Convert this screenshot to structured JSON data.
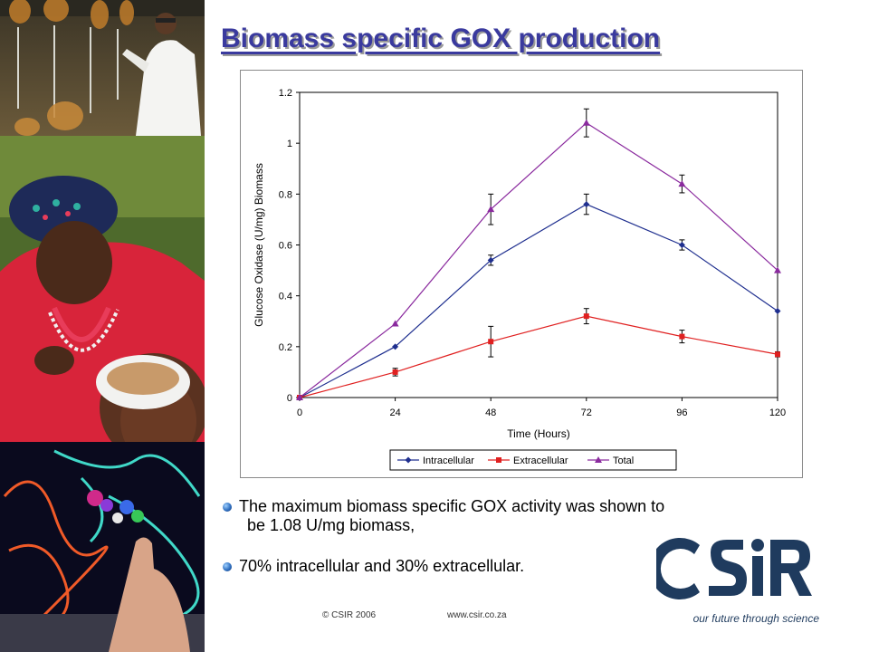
{
  "slide": {
    "title": "Biomass specific GOX production",
    "bullets": [
      {
        "line1": "The maximum biomass specific GOX activity was shown to",
        "line2": "be 1.08 U/mg biomass,"
      },
      {
        "line1": "70% intracellular and 30% extracellular."
      }
    ],
    "footer": {
      "copyright": "© CSIR 2006",
      "url": "www.csir.co.za"
    },
    "logo": {
      "wordmark": "CSIR",
      "tagline": "our future through science",
      "color": "#1f3b5e"
    }
  },
  "photos": [
    {
      "name": "laboratory-photo"
    },
    {
      "name": "mother-child-feeding-photo"
    },
    {
      "name": "molecular-model-photo"
    }
  ],
  "chart_data": {
    "type": "line",
    "title": "",
    "xlabel": "Time (Hours)",
    "ylabel": "Glucose Oxidase (U/mg) Biomass",
    "x": [
      0,
      24,
      48,
      72,
      96,
      120
    ],
    "xlim": [
      0,
      120
    ],
    "ylim": [
      0,
      1.2
    ],
    "x_ticks": [
      "0",
      "24",
      "48",
      "72",
      "96",
      "120"
    ],
    "y_ticks": [
      "0",
      "0.2",
      "0.4",
      "0.6",
      "0.8",
      "1",
      "1.2"
    ],
    "grid": false,
    "legend_position": "bottom",
    "series": [
      {
        "name": "Intracellular",
        "color": "#1f2f8f",
        "marker": "diamond",
        "values": [
          0,
          0.2,
          0.54,
          0.76,
          0.6,
          0.34
        ],
        "errors": [
          0,
          0,
          0.02,
          0.04,
          0.02,
          0
        ]
      },
      {
        "name": "Extracellular",
        "color": "#e02020",
        "marker": "square",
        "values": [
          0,
          0.1,
          0.22,
          0.32,
          0.24,
          0.17
        ],
        "errors": [
          0,
          0.015,
          0.06,
          0.03,
          0.025,
          0.01
        ]
      },
      {
        "name": "Total",
        "color": "#8a2a9e",
        "marker": "triangle",
        "values": [
          0,
          0.29,
          0.74,
          1.08,
          0.84,
          0.5
        ],
        "errors": [
          0,
          0,
          0.06,
          0.055,
          0.035,
          0
        ]
      }
    ]
  }
}
